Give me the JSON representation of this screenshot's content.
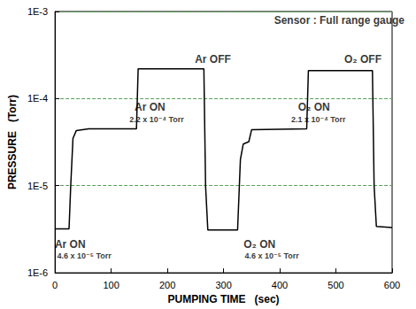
{
  "chart_data": {
    "type": "line",
    "xlabel": "PUMPING TIME   (sec)",
    "ylabel": "PRESSURE   (Torr)",
    "x": [
      0,
      25,
      28,
      32,
      38,
      60,
      145,
      148,
      265,
      268,
      272,
      325,
      330,
      335,
      345,
      350,
      448,
      451,
      565,
      568,
      572,
      600
    ],
    "values": [
      3.2e-06,
      3.2e-06,
      1e-05,
      3.5e-05,
      4.3e-05,
      4.5e-05,
      4.5e-05,
      0.00022,
      0.00022,
      1e-05,
      3.1e-06,
      3.1e-06,
      2e-05,
      3e-05,
      3.2e-05,
      4.4e-05,
      4.5e-05,
      0.00021,
      0.00021,
      1e-05,
      3.4e-06,
      3.3e-06
    ],
    "color": "#000000",
    "xlim": [
      0,
      600
    ],
    "xticks": [
      0,
      100,
      200,
      300,
      400,
      500,
      600
    ],
    "ylim": [
      1e-06,
      0.001
    ],
    "yticks": [
      {
        "value": 1e-06,
        "label": "1E-6"
      },
      {
        "value": 1e-05,
        "label": "1E-5"
      },
      {
        "value": 0.0001,
        "label": "1E-4"
      },
      {
        "value": 0.001,
        "label": "1E-3"
      }
    ],
    "log": "y",
    "grid": true,
    "annotations": [
      {
        "text": "Sensor : Full range gauge",
        "x": 506,
        "y": 0.00079
      },
      {
        "text": "Ar ON",
        "x": 27,
        "y": 2.1e-06
      },
      {
        "text": "4.6 x 10⁻⁵ Torr",
        "x": 52,
        "y": 1.56e-06
      },
      {
        "text": "Ar ON",
        "x": 169,
        "y": 8e-05
      },
      {
        "text": "2.2 x 10⁻⁴ Torr",
        "x": 181,
        "y": 5.7e-05
      },
      {
        "text": "Ar OFF",
        "x": 281,
        "y": 0.00028
      },
      {
        "text": "O₂ ON",
        "x": 364,
        "y": 2.1e-06
      },
      {
        "text": "4.6 x 10⁻⁵ Torr",
        "x": 386,
        "y": 1.56e-06
      },
      {
        "text": "O₂ ON",
        "x": 461,
        "y": 8e-05
      },
      {
        "text": "2.1 x 10⁻⁴ Torr",
        "x": 469,
        "y": 5.7e-05
      },
      {
        "text": "O₂ OFF",
        "x": 548,
        "y": 0.00028
      }
    ]
  }
}
